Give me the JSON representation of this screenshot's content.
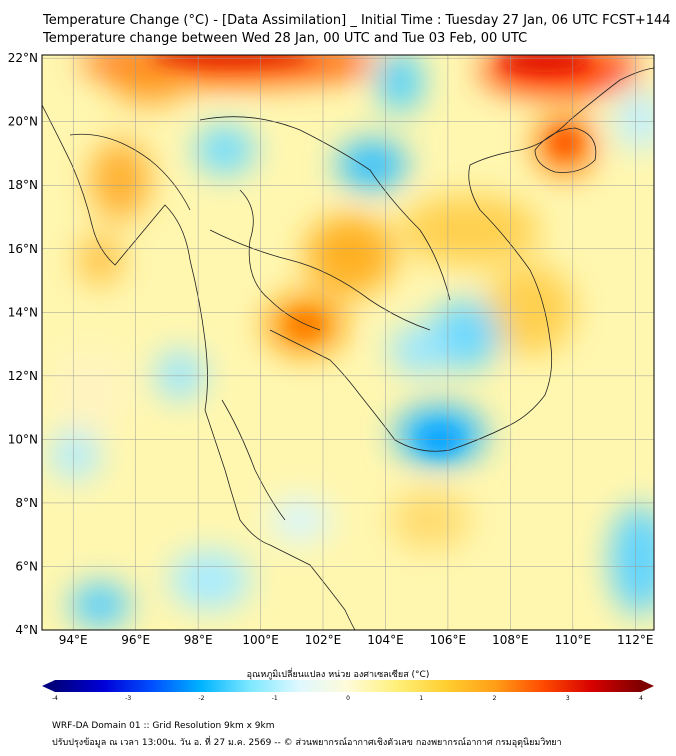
{
  "title": {
    "line1": "Temperature Change (°C) - [Data Assimilation] _ Initial Time : Tuesday 27 Jan, 06 UTC FCST+144",
    "line2": "Temperature change between Wed 28 Jan, 00 UTC and Tue 03 Feb, 00 UTC"
  },
  "axes": {
    "lat_labels": [
      "22°N",
      "20°N",
      "18°N",
      "16°N",
      "14°N",
      "12°N",
      "10°N",
      "8°N",
      "6°N",
      "4°N"
    ],
    "lon_labels": [
      "94°E",
      "96°E",
      "98°E",
      "100°E",
      "102°E",
      "104°E",
      "106°E",
      "108°E",
      "110°E",
      "112°E"
    ],
    "lat_values": [
      22,
      20,
      18,
      16,
      14,
      12,
      10,
      8,
      6,
      4
    ],
    "lon_values": [
      94,
      96,
      98,
      100,
      102,
      104,
      106,
      108,
      110,
      112
    ],
    "lat_range": [
      4,
      22.1
    ],
    "lon_range": [
      93,
      112.6
    ],
    "grid": true
  },
  "colorbar": {
    "title": "อุณหภูมิเปลี่ยนแปลง หน่วย องศาเซลเซียส (°C)",
    "ticks": [
      "-4",
      "-3",
      "-2",
      "-1",
      "0",
      "1",
      "2",
      "3",
      "4"
    ],
    "range": [
      -4,
      4
    ],
    "colors": [
      "#00007e",
      "#0000d8",
      "#0050ff",
      "#00b4ff",
      "#7ee8ff",
      "#dff8ff",
      "#fffbd8",
      "#fff07a",
      "#ffcf30",
      "#ff9f18",
      "#ff4a00",
      "#d60000",
      "#7e0000"
    ]
  },
  "footer": {
    "line1": "WRF-DA Domain 01 :: Grid Resolution 9km x 9km",
    "line2": "ปรับปรุงข้อมูล ณ เวลา 13:00น. วัน อ. ที่ 27 ม.ค. 2569 -- © ส่วนพยากรณ์อากาศเชิงตัวเลข กองพยากรณ์อากาศ กรมอุตุนิยมวิทยา"
  }
}
